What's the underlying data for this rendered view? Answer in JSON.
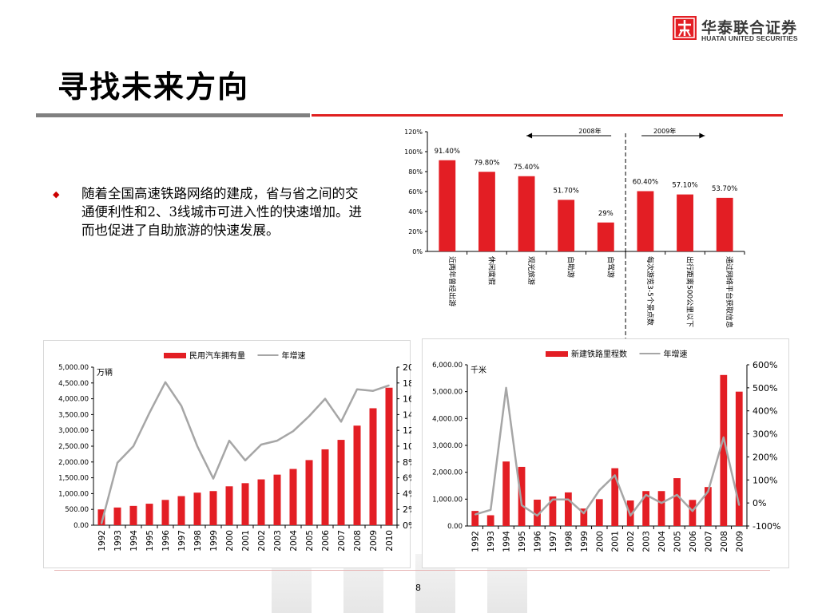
{
  "brand": {
    "name_cn": "华泰联合证券",
    "name_en": "HUATAI UNITED SECURITIES",
    "red": "#e31e24",
    "grey": "#808080"
  },
  "title": "寻找未来方向",
  "bullet": {
    "icon": "diamond-bullet-icon",
    "text": "随着全国高速铁路网络的建成，省与省之间的交通便利性和2、3线城市可进入性的快速增加。进而也促进了自助旅游的快速发展。"
  },
  "page_number": "8",
  "chart_data": [
    {
      "id": "top",
      "type": "bar",
      "categories": [
        "近两年曾经出游",
        "休闲度假",
        "观光旅游",
        "自助游",
        "自驾游",
        "每次游览3-5个景点数",
        "出行距离500公里以下",
        "通过网络平台获取信息"
      ],
      "values": [
        91.4,
        79.8,
        75.4,
        51.7,
        29,
        60.4,
        57.1,
        53.7
      ],
      "value_labels": [
        "91.40%",
        "79.80%",
        "75.40%",
        "51.70%",
        "29%",
        "60.40%",
        "57.10%",
        "53.70%"
      ],
      "ylim": [
        0,
        120
      ],
      "yticks": [
        "0%",
        "20%",
        "40%",
        "60%",
        "80%",
        "100%",
        "120%"
      ],
      "annotations": [
        "2008年",
        "2009年"
      ],
      "color": "#e31e24",
      "grid": false
    },
    {
      "id": "left",
      "type": "bar+line",
      "categories": [
        "1992",
        "1993",
        "1994",
        "1995",
        "1996",
        "1997",
        "1998",
        "1999",
        "2000",
        "2001",
        "2002",
        "2003",
        "2004",
        "2005",
        "2006",
        "2007",
        "2008",
        "2009",
        "2010"
      ],
      "series": [
        {
          "name": "民用汽车拥有量",
          "type": "bar",
          "axis": "left",
          "color": "#e31e24",
          "values": [
            500,
            560,
            610,
            680,
            800,
            920,
            1030,
            1080,
            1230,
            1330,
            1450,
            1600,
            1780,
            2060,
            2400,
            2700,
            3150,
            3700,
            4350
          ]
        },
        {
          "name": "年增速",
          "type": "line",
          "axis": "right",
          "color": "#a6a6a6",
          "values": [
            0.2,
            7.9,
            10,
            14.2,
            18.1,
            15.1,
            10,
            5.9,
            10.7,
            8.2,
            10.2,
            10.7,
            11.9,
            13.8,
            16,
            13.1,
            17.2,
            17,
            17.7
          ]
        }
      ],
      "left_unit": "万辆",
      "left_ylim": [
        0,
        5000
      ],
      "left_yticks": [
        "0.00",
        "500.00",
        "1,000.00",
        "1,500.00",
        "2,000.00",
        "2,500.00",
        "3,000.00",
        "3,500.00",
        "4,000.00",
        "4,500.00",
        "5,000.00"
      ],
      "right_ylim": [
        0,
        20
      ],
      "right_yticks": [
        "0%",
        "2%",
        "4%",
        "6%",
        "8%",
        "10%",
        "12%",
        "14%",
        "16%",
        "18%",
        "20%"
      ],
      "legend_position": "top"
    },
    {
      "id": "right",
      "type": "bar+line",
      "categories": [
        "1992",
        "1993",
        "1994",
        "1995",
        "1996",
        "1997",
        "1998",
        "1999",
        "2000",
        "2001",
        "2002",
        "2003",
        "2004",
        "2005",
        "2006",
        "2007",
        "2008",
        "2009"
      ],
      "series": [
        {
          "name": "新建铁路里程数",
          "type": "bar",
          "axis": "left",
          "color": "#e31e24",
          "values": [
            560,
            400,
            2400,
            2200,
            980,
            1100,
            1250,
            650,
            1000,
            2150,
            950,
            1300,
            1300,
            1780,
            970,
            1450,
            5620,
            5000
          ]
        },
        {
          "name": "年增速",
          "type": "line",
          "axis": "right",
          "color": "#a6a6a6",
          "values": [
            -50,
            -30,
            500,
            -10,
            -55,
            15,
            15,
            -45,
            55,
            120,
            -55,
            35,
            0,
            35,
            -35,
            50,
            285,
            -10
          ]
        }
      ],
      "left_unit": "千米",
      "left_ylim": [
        0,
        6000
      ],
      "left_yticks": [
        "0.00",
        "1,000.00",
        "2,000.00",
        "3,000.00",
        "4,000.00",
        "5,000.00",
        "6,000.00"
      ],
      "right_ylim": [
        -100,
        600
      ],
      "right_yticks": [
        "-100%",
        "0%",
        "100%",
        "200%",
        "300%",
        "400%",
        "500%",
        "600%"
      ],
      "legend_position": "top"
    }
  ]
}
